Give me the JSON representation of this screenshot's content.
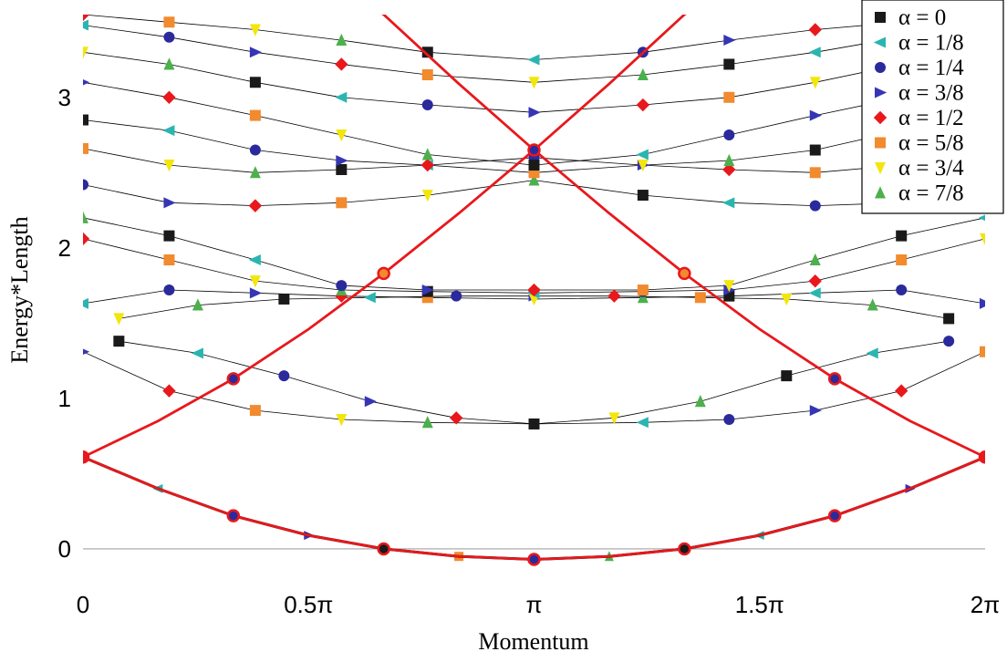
{
  "chart_data": {
    "type": "scatter",
    "xlabel": "Momentum",
    "ylabel": "Energy*Length",
    "xlim": [
      0,
      6.2832
    ],
    "ylim": [
      -0.17,
      3.55
    ],
    "x_ticks": [
      {
        "value": 0,
        "label": "0"
      },
      {
        "value": 1.5708,
        "label": "0.5π"
      },
      {
        "value": 3.1416,
        "label": "π"
      },
      {
        "value": 4.7124,
        "label": "1.5π"
      },
      {
        "value": 6.2832,
        "label": "2π"
      }
    ],
    "y_ticks": [
      {
        "value": 0,
        "label": "0"
      },
      {
        "value": 1,
        "label": "1"
      },
      {
        "value": 2,
        "label": "2"
      },
      {
        "value": 3,
        "label": "3"
      }
    ],
    "legend_position": "top-right",
    "legend": [
      {
        "label": "α = 0",
        "marker": "square",
        "color": "#1a1a1a"
      },
      {
        "label": "α = 1/8",
        "marker": "triangle-left",
        "color": "#2bb5b0"
      },
      {
        "label": "α = 1/4",
        "marker": "circle",
        "color": "#2a2a9c"
      },
      {
        "label": "α = 3/8",
        "marker": "triangle-right",
        "color": "#3535b5"
      },
      {
        "label": "α = 1/2",
        "marker": "diamond",
        "color": "#e8181c"
      },
      {
        "label": "α = 5/8",
        "marker": "square",
        "color": "#f28a2e"
      },
      {
        "label": "α = 3/4",
        "marker": "triangle-down",
        "color": "#f2e60c"
      },
      {
        "label": "α = 7/8",
        "marker": "triangle-up",
        "color": "#4cb04c"
      }
    ],
    "red_curves": [
      {
        "name": "",
        "x": [
          0,
          0.5236,
          1.0472,
          1.5708,
          2.0944,
          2.618,
          3.1416,
          3.6652,
          4.1888,
          4.7124,
          5.236,
          5.7596,
          6.2832
        ],
        "y": [
          0.61,
          0.4,
          0.22,
          0.09,
          0.0,
          -0.05,
          -0.07,
          -0.05,
          0.0,
          0.09,
          0.22,
          0.4,
          0.61
        ]
      },
      {
        "name": "",
        "x": [
          0,
          0.5236,
          1.0472,
          1.5708,
          2.0944,
          2.618,
          3.1416,
          3.6652,
          4.1888,
          4.7124,
          5.236,
          5.7596,
          6.2832
        ],
        "y": [
          0.61,
          0.85,
          1.13,
          1.46,
          1.83,
          2.23,
          2.65,
          3.09,
          3.55,
          3.9,
          4.2,
          4.4,
          4.5
        ]
      },
      {
        "name": "",
        "x": [
          0,
          0.5236,
          1.0472,
          1.5708,
          2.0944,
          2.618,
          3.1416,
          3.6652,
          4.1888,
          4.7124,
          5.236,
          5.7596,
          6.2832
        ],
        "y": [
          4.5,
          4.4,
          4.2,
          3.9,
          3.55,
          3.09,
          2.65,
          2.23,
          1.83,
          1.46,
          1.13,
          0.85,
          0.61
        ]
      }
    ],
    "black_curves": [
      {
        "x": [
          0.25,
          0.8,
          1.4,
          2.0,
          2.6,
          3.1416,
          3.7,
          4.3,
          4.9,
          5.5,
          6.03
        ],
        "y": [
          1.38,
          1.3,
          1.15,
          0.98,
          0.87,
          0.83,
          0.87,
          0.98,
          1.15,
          1.3,
          1.38
        ]
      },
      {
        "x": [
          0.0,
          0.6,
          1.2,
          1.8,
          2.4,
          3.1416,
          3.9,
          4.5,
          5.1,
          5.7,
          6.2832
        ],
        "y": [
          1.31,
          1.05,
          0.92,
          0.86,
          0.84,
          0.83,
          0.84,
          0.86,
          0.92,
          1.05,
          1.31
        ]
      },
      {
        "x": [
          0.25,
          0.8,
          1.4,
          2.0,
          2.6,
          3.1416,
          3.7,
          4.3,
          4.9,
          5.5,
          6.03
        ],
        "y": [
          1.53,
          1.62,
          1.66,
          1.67,
          1.68,
          1.68,
          1.68,
          1.67,
          1.66,
          1.62,
          1.53
        ]
      },
      {
        "x": [
          0.0,
          0.6,
          1.2,
          1.8,
          2.4,
          3.1416,
          3.9,
          4.5,
          5.1,
          5.7,
          6.2832
        ],
        "y": [
          1.63,
          1.72,
          1.7,
          1.68,
          1.67,
          1.66,
          1.67,
          1.68,
          1.7,
          1.72,
          1.63
        ]
      },
      {
        "x": [
          0.0,
          0.6,
          1.2,
          1.8,
          2.4,
          3.1416,
          3.9,
          4.5,
          5.1,
          5.7,
          6.2832
        ],
        "y": [
          2.06,
          1.92,
          1.78,
          1.72,
          1.71,
          1.7,
          1.71,
          1.72,
          1.78,
          1.92,
          2.06
        ]
      },
      {
        "x": [
          0.0,
          0.6,
          1.2,
          1.8,
          2.4,
          3.1416,
          3.9,
          4.5,
          5.1,
          5.7,
          6.2832
        ],
        "y": [
          2.2,
          2.08,
          1.92,
          1.75,
          1.72,
          1.72,
          1.72,
          1.75,
          1.92,
          2.08,
          2.2
        ]
      },
      {
        "x": [
          0.0,
          0.6,
          1.2,
          1.8,
          2.4,
          3.1416,
          3.9,
          4.5,
          5.1,
          5.7,
          6.2832
        ],
        "y": [
          2.42,
          2.3,
          2.28,
          2.3,
          2.35,
          2.45,
          2.35,
          2.3,
          2.28,
          2.3,
          2.42
        ]
      },
      {
        "x": [
          0.0,
          0.6,
          1.2,
          1.8,
          2.4,
          3.1416,
          3.9,
          4.5,
          5.1,
          5.7,
          6.2832
        ],
        "y": [
          2.66,
          2.55,
          2.5,
          2.52,
          2.55,
          2.6,
          2.55,
          2.52,
          2.5,
          2.55,
          2.66
        ]
      },
      {
        "x": [
          0.0,
          0.6,
          1.2,
          1.8,
          2.4,
          3.1416,
          3.9,
          4.5,
          5.1,
          5.7,
          6.2832
        ],
        "y": [
          2.85,
          2.78,
          2.65,
          2.58,
          2.55,
          2.5,
          2.55,
          2.58,
          2.65,
          2.78,
          2.85
        ]
      },
      {
        "x": [
          0.0,
          0.6,
          1.2,
          1.8,
          2.4,
          3.1416,
          3.9,
          4.5,
          5.1,
          5.7,
          6.2832
        ],
        "y": [
          3.1,
          3.0,
          2.88,
          2.75,
          2.62,
          2.55,
          2.62,
          2.75,
          2.88,
          3.0,
          3.1
        ]
      },
      {
        "x": [
          0.0,
          0.6,
          1.2,
          1.8,
          2.4,
          3.1416,
          3.9,
          4.5,
          5.1,
          5.7,
          6.2832
        ],
        "y": [
          3.3,
          3.22,
          3.1,
          3.0,
          2.95,
          2.9,
          2.95,
          3.0,
          3.1,
          3.22,
          3.3
        ]
      },
      {
        "x": [
          0.0,
          0.6,
          1.2,
          1.8,
          2.4,
          3.1416,
          3.9,
          4.5,
          5.1,
          5.7,
          6.2832
        ],
        "y": [
          3.48,
          3.4,
          3.3,
          3.22,
          3.15,
          3.1,
          3.15,
          3.22,
          3.3,
          3.4,
          3.48
        ]
      },
      {
        "x": [
          0.0,
          0.6,
          1.2,
          1.8,
          2.4,
          3.1416,
          3.9,
          4.5,
          5.1,
          5.7,
          6.2832
        ],
        "y": [
          3.55,
          3.5,
          3.45,
          3.38,
          3.3,
          3.25,
          3.3,
          3.38,
          3.45,
          3.5,
          3.55
        ]
      }
    ],
    "highlight_points": [
      {
        "x": 0,
        "y": 0.61,
        "color": "#e8181c"
      },
      {
        "x": 6.2832,
        "y": 0.61,
        "color": "#e8181c"
      },
      {
        "x": 1.0472,
        "y": 0.22,
        "color": "#2a2a9c"
      },
      {
        "x": 2.0944,
        "y": 0.0,
        "color": "#1a1a1a"
      },
      {
        "x": 3.1416,
        "y": -0.07,
        "color": "#2a2a9c"
      },
      {
        "x": 4.1888,
        "y": 0.0,
        "color": "#1a1a1a"
      },
      {
        "x": 5.236,
        "y": 0.22,
        "color": "#2a2a9c"
      },
      {
        "x": 1.0472,
        "y": 1.13,
        "color": "#2a2a9c"
      },
      {
        "x": 5.236,
        "y": 1.13,
        "color": "#2a2a9c"
      },
      {
        "x": 2.0944,
        "y": 1.83,
        "color": "#f28a2e"
      },
      {
        "x": 4.1888,
        "y": 1.83,
        "color": "#f28a2e"
      },
      {
        "x": 3.1416,
        "y": 2.65,
        "color": "#2a2a9c"
      }
    ]
  }
}
